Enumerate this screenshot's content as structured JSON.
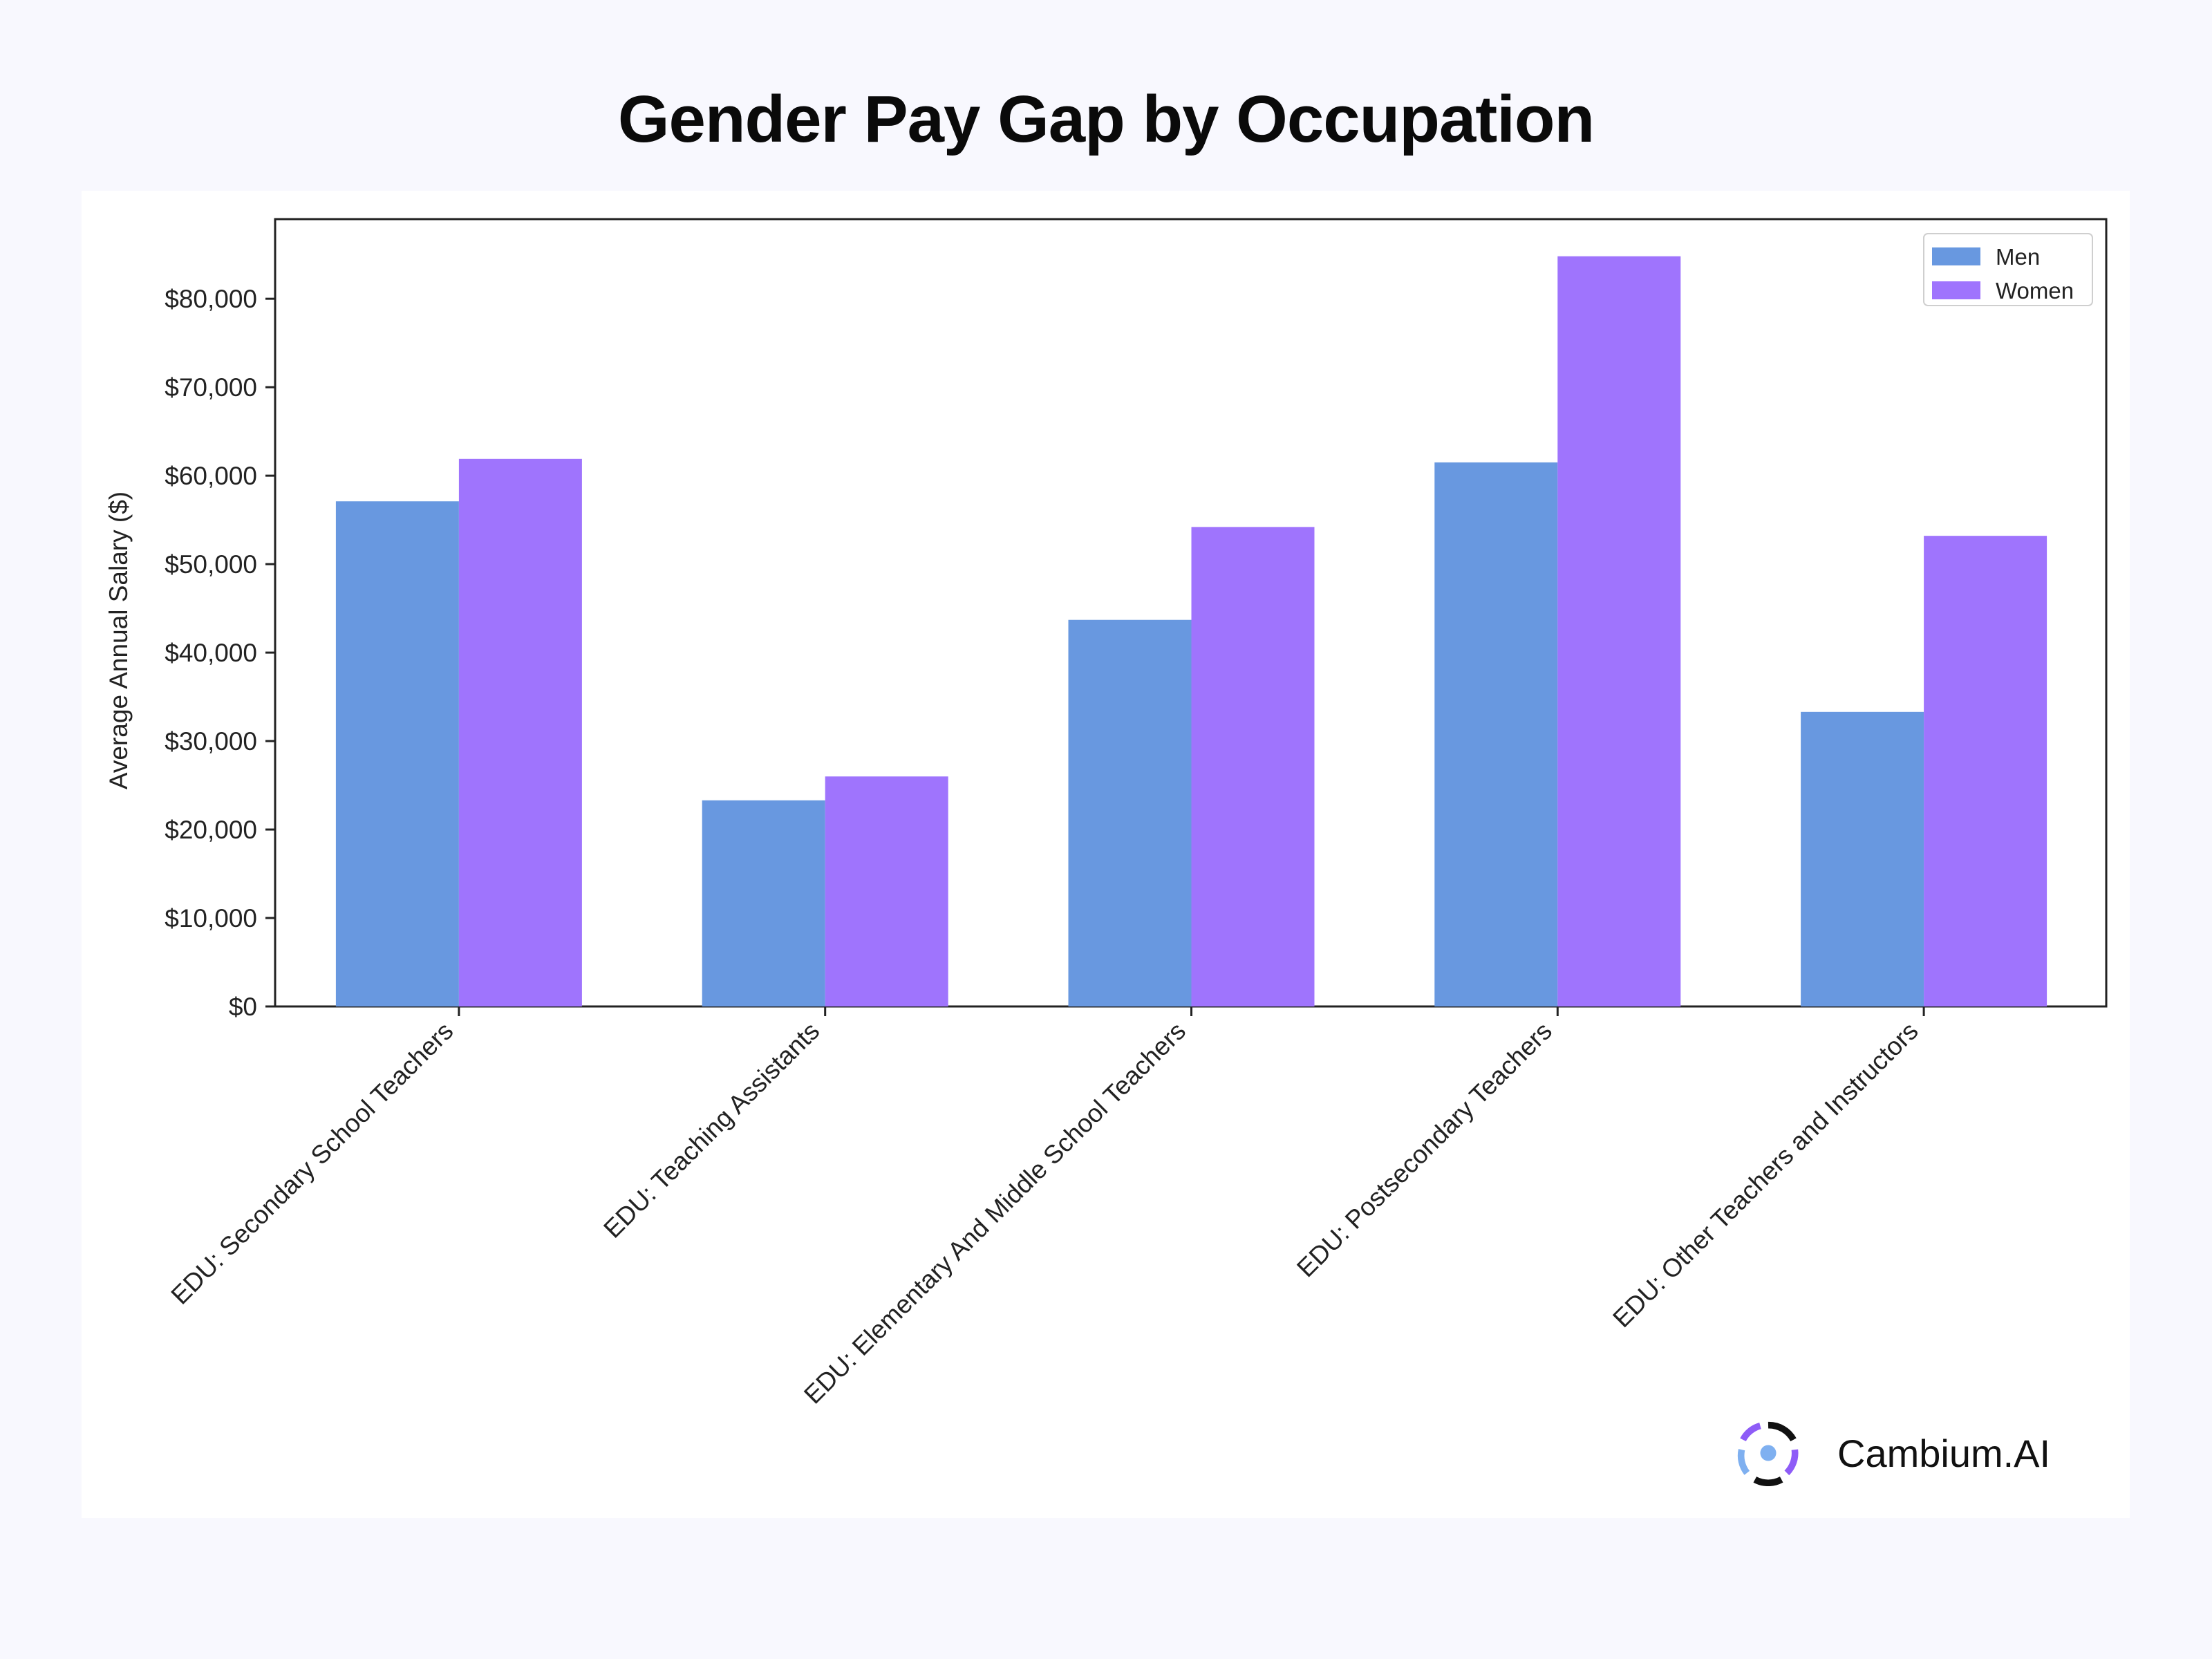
{
  "page": {
    "title": "Gender Pay Gap by Occupation"
  },
  "brand": {
    "name": "Cambium.AI",
    "logo_icon": "cambium-logo-icon"
  },
  "chart_data": {
    "type": "bar",
    "title": "",
    "xlabel": "",
    "ylabel": "Average Annual Salary ($)",
    "ylim": [
      0,
      89000
    ],
    "yticks": [
      0,
      10000,
      20000,
      30000,
      40000,
      50000,
      60000,
      70000,
      80000
    ],
    "ytick_labels": [
      "$0",
      "$10,000",
      "$20,000",
      "$30,000",
      "$40,000",
      "$50,000",
      "$60,000",
      "$70,000",
      "$80,000"
    ],
    "categories": [
      "EDU: Secondary School Teachers",
      "EDU: Teaching Assistants",
      "EDU: Elementary And Middle School Teachers",
      "EDU: Postsecondary Teachers",
      "EDU: Other Teachers and Instructors"
    ],
    "series": [
      {
        "name": "Men",
        "color": "#6898e0",
        "values": [
          57100,
          23300,
          43700,
          61500,
          33300
        ]
      },
      {
        "name": "Women",
        "color": "#9f74fd",
        "values": [
          61900,
          26000,
          54200,
          84800,
          53200
        ]
      }
    ],
    "legend": "top-right",
    "grid": false
  }
}
